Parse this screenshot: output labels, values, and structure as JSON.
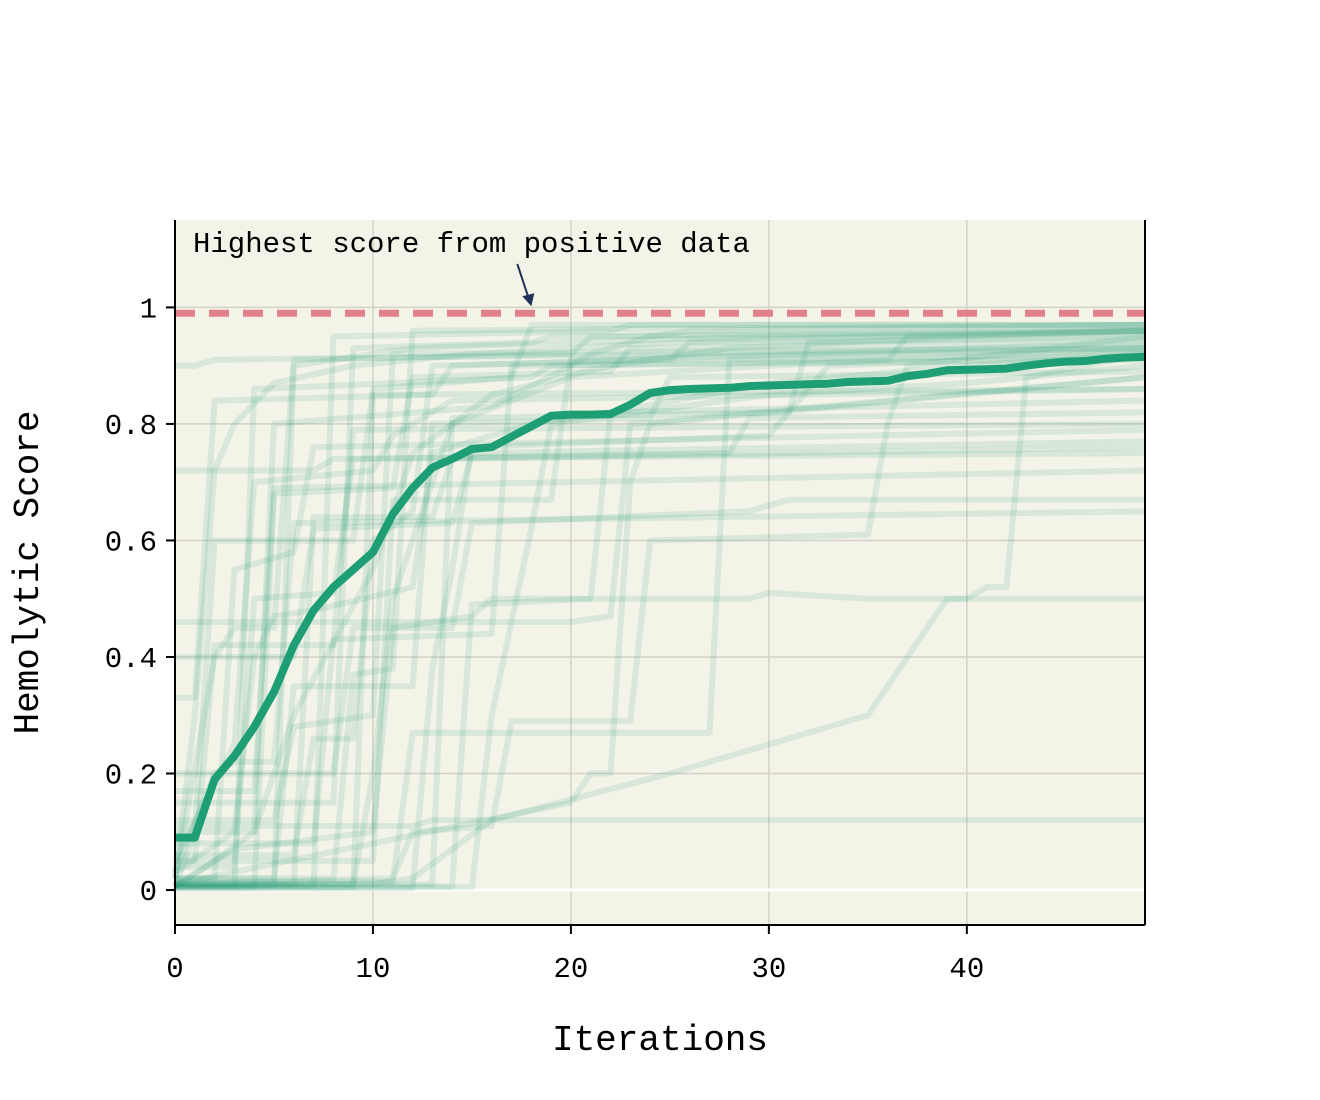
{
  "chart_data": {
    "type": "line",
    "title": "",
    "xlabel": "Iterations",
    "ylabel": "Hemolytic Score",
    "xlim": [
      0,
      49
    ],
    "ylim": [
      -0.06,
      1.15
    ],
    "x_ticks": [
      0,
      10,
      20,
      30,
      40
    ],
    "x_tick_labels": [
      "0",
      "10",
      "20",
      "30",
      "40"
    ],
    "y_ticks": [
      0,
      0.2,
      0.4,
      0.6,
      0.8,
      1
    ],
    "y_tick_labels": [
      "0",
      "0.2",
      "0.4",
      "0.6",
      "0.8",
      "1"
    ],
    "grid": true,
    "reference_line": {
      "y": 0.99,
      "style": "dashed",
      "color": "#e0808a"
    },
    "annotation": {
      "text": "Highest score from positive data",
      "x": 18,
      "y": 0.99
    },
    "colors": {
      "background": "#f4f3e8",
      "series": "#1e9e74",
      "grid": "#d2d2c6",
      "zero_line": "#ffffff",
      "arrow": "#22335a"
    },
    "series": [
      {
        "role": "mean",
        "x": [
          0,
          1,
          2,
          3,
          4,
          5,
          6,
          7,
          8,
          9,
          10,
          11,
          12,
          13,
          14,
          15,
          16,
          17,
          18,
          19,
          20,
          21,
          22,
          23,
          24,
          25,
          26,
          27,
          28,
          29,
          30,
          31,
          32,
          33,
          34,
          35,
          36,
          37,
          38,
          39,
          40,
          41,
          42,
          43,
          44,
          45,
          46,
          47,
          48,
          49
        ],
        "values": [
          0.09,
          0.09,
          0.19,
          0.23,
          0.28,
          0.34,
          0.42,
          0.48,
          0.52,
          0.55,
          0.58,
          0.645,
          0.69,
          0.725,
          0.74,
          0.757,
          0.76,
          0.778,
          0.796,
          0.814,
          0.816,
          0.816,
          0.817,
          0.833,
          0.853,
          0.858,
          0.86,
          0.861,
          0.862,
          0.865,
          0.866,
          0.867,
          0.868,
          0.869,
          0.872,
          0.873,
          0.874,
          0.882,
          0.886,
          0.892,
          0.893,
          0.894,
          0.895,
          0.9,
          0.904,
          0.907,
          0.908,
          0.912,
          0.914,
          0.915
        ]
      },
      {
        "role": "run",
        "x": [
          0,
          2,
          4,
          6,
          10,
          12,
          16,
          22,
          28,
          40,
          49
        ],
        "values": [
          0.006,
          0.05,
          0.1,
          0.3,
          0.55,
          0.75,
          0.85,
          0.9,
          0.93,
          0.95,
          0.96
        ]
      },
      {
        "role": "run",
        "x": [
          0,
          1,
          2,
          3,
          5,
          9,
          15,
          25,
          35,
          49
        ],
        "values": [
          0.02,
          0.3,
          0.72,
          0.8,
          0.87,
          0.9,
          0.92,
          0.94,
          0.95,
          0.96
        ]
      },
      {
        "role": "run",
        "x": [
          0,
          5,
          6,
          8,
          12,
          20,
          30,
          49
        ],
        "values": [
          0.008,
          0.008,
          0.9,
          0.91,
          0.93,
          0.94,
          0.95,
          0.96
        ]
      },
      {
        "role": "run",
        "x": [
          0,
          9,
          10,
          11,
          14,
          20,
          30,
          49
        ],
        "values": [
          0.01,
          0.01,
          0.2,
          0.5,
          0.8,
          0.88,
          0.9,
          0.93
        ]
      },
      {
        "role": "run",
        "x": [
          0,
          11,
          12,
          16,
          17,
          23,
          24,
          35,
          36,
          37,
          49
        ],
        "values": [
          0.01,
          0.02,
          0.1,
          0.11,
          0.29,
          0.29,
          0.6,
          0.61,
          0.8,
          0.9,
          0.95
        ]
      },
      {
        "role": "run",
        "x": [
          0,
          20,
          21,
          22,
          23,
          24,
          49
        ],
        "values": [
          0.01,
          0.15,
          0.2,
          0.2,
          0.7,
          0.8,
          0.88
        ]
      },
      {
        "role": "run",
        "x": [
          0,
          3,
          4,
          5,
          7,
          12,
          13,
          18,
          22,
          30,
          40,
          49
        ],
        "values": [
          0.03,
          0.1,
          0.4,
          0.47,
          0.48,
          0.52,
          0.75,
          0.8,
          0.82,
          0.87,
          0.9,
          0.92
        ]
      },
      {
        "role": "run",
        "x": [
          0,
          1,
          2,
          49
        ],
        "values": [
          0.9,
          0.9,
          0.91,
          0.93
        ]
      },
      {
        "role": "run",
        "x": [
          0,
          6,
          7,
          14,
          15,
          49
        ],
        "values": [
          0.4,
          0.4,
          0.62,
          0.63,
          0.75,
          0.77
        ]
      },
      {
        "role": "run",
        "x": [
          0,
          2,
          3,
          10,
          11,
          15,
          16,
          29,
          30,
          35,
          36,
          49
        ],
        "values": [
          0.005,
          0.05,
          0.07,
          0.1,
          0.45,
          0.47,
          0.5,
          0.5,
          0.51,
          0.5,
          0.5,
          0.5
        ]
      },
      {
        "role": "run",
        "x": [
          0,
          12,
          13,
          20,
          21,
          49
        ],
        "values": [
          0.11,
          0.11,
          0.12,
          0.12,
          0.12,
          0.12
        ]
      },
      {
        "role": "run",
        "x": [
          0,
          10,
          12,
          16,
          25,
          35,
          39,
          40,
          41,
          42,
          43,
          49
        ],
        "values": [
          0.01,
          0.01,
          0.02,
          0.12,
          0.2,
          0.3,
          0.5,
          0.5,
          0.52,
          0.52,
          0.88,
          0.92
        ]
      },
      {
        "role": "run",
        "x": [
          0,
          8,
          9,
          14,
          15,
          29,
          31,
          49
        ],
        "values": [
          0.2,
          0.2,
          0.45,
          0.45,
          0.63,
          0.65,
          0.67,
          0.67
        ]
      },
      {
        "role": "run",
        "x": [
          0,
          4,
          5,
          16,
          20,
          21,
          24,
          26,
          49
        ],
        "values": [
          0.1,
          0.1,
          0.8,
          0.83,
          0.9,
          0.92,
          0.95,
          0.96,
          0.97
        ]
      },
      {
        "role": "run",
        "x": [
          0,
          19,
          20,
          22,
          23,
          49
        ],
        "values": [
          0.46,
          0.46,
          0.46,
          0.47,
          0.8,
          0.88
        ]
      },
      {
        "role": "run",
        "x": [
          0,
          7,
          8,
          49
        ],
        "values": [
          0.72,
          0.72,
          0.74,
          0.75
        ]
      },
      {
        "role": "run",
        "x": [
          0,
          3,
          4,
          10,
          11,
          13,
          14,
          49
        ],
        "values": [
          0.05,
          0.25,
          0.7,
          0.72,
          0.78,
          0.82,
          0.84,
          0.86
        ]
      },
      {
        "role": "run",
        "x": [
          0,
          15,
          16,
          18,
          19,
          30,
          40,
          49
        ],
        "values": [
          0.004,
          0.005,
          0.3,
          0.62,
          0.8,
          0.85,
          0.87,
          0.9
        ]
      },
      {
        "role": "run",
        "x": [
          0,
          1,
          2,
          13,
          14,
          49
        ],
        "values": [
          0.33,
          0.33,
          0.84,
          0.85,
          0.9,
          0.94
        ]
      },
      {
        "role": "run",
        "x": [
          0,
          6,
          7,
          9,
          10,
          12,
          13,
          25,
          26,
          49
        ],
        "values": [
          0.06,
          0.06,
          0.26,
          0.26,
          0.6,
          0.65,
          0.9,
          0.91,
          0.94,
          0.95
        ]
      },
      {
        "role": "run",
        "x": [
          0,
          5,
          6,
          12,
          13,
          24,
          25,
          49
        ],
        "values": [
          0.02,
          0.02,
          0.35,
          0.35,
          0.8,
          0.81,
          0.88,
          0.89
        ]
      },
      {
        "role": "run",
        "x": [
          0,
          8,
          9,
          18,
          19,
          49
        ],
        "values": [
          0.15,
          0.15,
          0.93,
          0.94,
          0.95,
          0.96
        ]
      },
      {
        "role": "run",
        "x": [
          0,
          2,
          3,
          6,
          7,
          49
        ],
        "values": [
          0.02,
          0.02,
          0.55,
          0.58,
          0.76,
          0.79
        ]
      },
      {
        "role": "run",
        "x": [
          0,
          10,
          11,
          19,
          20,
          49
        ],
        "values": [
          0.05,
          0.05,
          0.67,
          0.67,
          0.91,
          0.93
        ]
      },
      {
        "role": "run",
        "x": [
          0,
          4,
          5,
          11,
          12,
          22,
          23,
          49
        ],
        "values": [
          0.004,
          0.004,
          0.68,
          0.69,
          0.88,
          0.89,
          0.93,
          0.94
        ]
      },
      {
        "role": "run",
        "x": [
          0,
          2,
          3,
          5,
          6,
          20,
          21,
          49
        ],
        "values": [
          0.02,
          0.4,
          0.45,
          0.45,
          0.91,
          0.92,
          0.95,
          0.96
        ]
      },
      {
        "role": "run",
        "x": [
          0,
          7,
          8,
          16,
          17,
          49
        ],
        "values": [
          0.08,
          0.08,
          0.43,
          0.44,
          0.9,
          0.91
        ]
      },
      {
        "role": "run",
        "x": [
          0,
          12,
          13,
          14,
          15,
          30,
          33,
          49
        ],
        "values": [
          0.003,
          0.003,
          0.38,
          0.55,
          0.76,
          0.78,
          0.9,
          0.92
        ]
      },
      {
        "role": "run",
        "x": [
          0,
          3,
          4,
          8,
          9,
          28,
          29,
          49
        ],
        "values": [
          0.04,
          0.04,
          0.5,
          0.51,
          0.74,
          0.75,
          0.81,
          0.82
        ]
      },
      {
        "role": "run",
        "x": [
          0,
          9,
          10,
          49
        ],
        "values": [
          0.005,
          0.005,
          0.85,
          0.86
        ]
      },
      {
        "role": "run",
        "x": [
          0,
          1,
          2,
          9,
          10,
          17,
          18,
          49
        ],
        "values": [
          0.005,
          0.1,
          0.6,
          0.6,
          0.86,
          0.88,
          0.97,
          0.97
        ]
      },
      {
        "role": "run",
        "x": [
          0,
          6,
          7,
          13,
          14,
          49
        ],
        "values": [
          0.01,
          0.01,
          0.64,
          0.64,
          0.74,
          0.76
        ]
      },
      {
        "role": "run",
        "x": [
          0,
          11,
          12,
          27,
          28,
          49
        ],
        "values": [
          0.015,
          0.015,
          0.27,
          0.27,
          0.91,
          0.92
        ]
      },
      {
        "role": "run",
        "x": [
          0,
          5,
          6,
          10,
          11,
          49
        ],
        "values": [
          0.12,
          0.12,
          0.28,
          0.3,
          0.92,
          0.93
        ]
      },
      {
        "role": "run",
        "x": [
          0,
          3,
          4,
          18,
          19,
          36,
          37,
          49
        ],
        "values": [
          0.007,
          0.007,
          0.86,
          0.88,
          0.9,
          0.91,
          0.95,
          0.96
        ]
      },
      {
        "role": "run",
        "x": [
          0,
          14,
          15,
          21,
          22,
          49
        ],
        "values": [
          0.006,
          0.006,
          0.49,
          0.5,
          0.82,
          0.84
        ]
      },
      {
        "role": "run",
        "x": [
          0,
          2,
          3,
          5,
          6,
          49
        ],
        "values": [
          0.03,
          0.2,
          0.22,
          0.22,
          0.63,
          0.65
        ]
      },
      {
        "role": "run",
        "x": [
          0,
          8,
          9,
          11,
          12,
          49
        ],
        "values": [
          0.02,
          0.02,
          0.37,
          0.38,
          0.96,
          0.97
        ]
      },
      {
        "role": "run",
        "x": [
          0,
          1,
          2,
          8,
          9,
          49
        ],
        "values": [
          0.05,
          0.05,
          0.42,
          0.42,
          0.79,
          0.8
        ]
      },
      {
        "role": "run",
        "x": [
          0,
          7,
          8,
          22,
          23,
          49
        ],
        "values": [
          0.007,
          0.007,
          0.95,
          0.96,
          0.97,
          0.97
        ]
      },
      {
        "role": "run",
        "x": [
          0,
          4,
          5,
          49
        ],
        "values": [
          0.17,
          0.17,
          0.69,
          0.72
        ]
      },
      {
        "role": "run",
        "x": [
          0,
          13,
          14,
          31,
          32,
          49
        ],
        "values": [
          0.01,
          0.01,
          0.81,
          0.82,
          0.94,
          0.95
        ]
      }
    ]
  }
}
